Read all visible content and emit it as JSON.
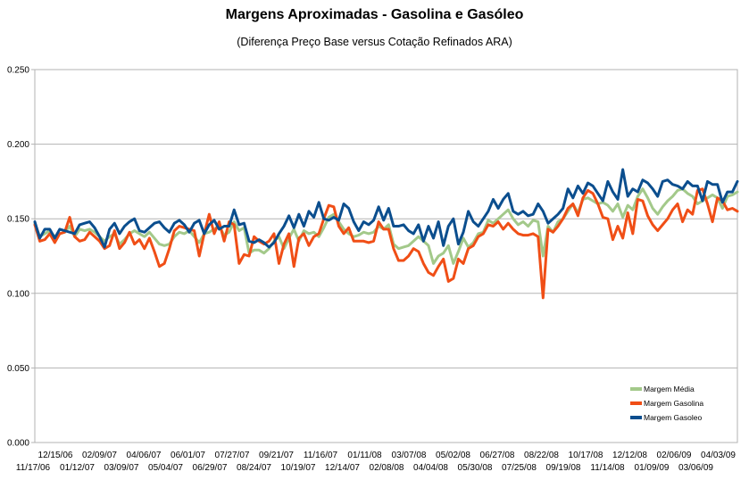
{
  "chart_data": {
    "type": "line",
    "title": "Margens Aproximadas - Gasolina e Gasóleo",
    "subtitle": "(Diferença Preço Base versus Cotação Refinados ARA)",
    "xlabel": "",
    "ylabel": "",
    "ylim": [
      0,
      0.25
    ],
    "y_ticks": [
      "0.000",
      "0.050",
      "0.100",
      "0.150",
      "0.200",
      "0.250"
    ],
    "grid": "horizontal major gridlines",
    "legend_position": "bottom-right",
    "x_tick_labels_upper": [
      "12/15/06",
      "02/09/07",
      "04/06/07",
      "06/01/07",
      "07/27/07",
      "09/21/07",
      "11/16/07",
      "01/11/08",
      "03/07/08",
      "05/02/08",
      "06/27/08",
      "08/22/08",
      "10/17/08",
      "12/12/08",
      "02/06/09",
      "04/03/09"
    ],
    "x_tick_labels_lower": [
      "11/17/06",
      "01/12/07",
      "03/09/07",
      "05/04/07",
      "06/29/07",
      "08/24/07",
      "10/19/07",
      "12/14/07",
      "02/08/08",
      "04/04/08",
      "05/30/08",
      "07/25/08",
      "09/19/08",
      "11/14/08",
      "01/09/09",
      "03/06/09"
    ],
    "series": [
      {
        "name": "Margem Média",
        "color": "#a3c98a",
        "values": [
          0.147,
          0.138,
          0.14,
          0.142,
          0.138,
          0.14,
          0.141,
          0.145,
          0.138,
          0.143,
          0.142,
          0.143,
          0.141,
          0.138,
          0.135,
          0.138,
          0.14,
          0.133,
          0.136,
          0.14,
          0.142,
          0.14,
          0.138,
          0.141,
          0.137,
          0.133,
          0.132,
          0.133,
          0.138,
          0.141,
          0.14,
          0.142,
          0.138,
          0.134,
          0.14,
          0.141,
          0.143,
          0.145,
          0.139,
          0.141,
          0.148,
          0.142,
          0.144,
          0.127,
          0.129,
          0.129,
          0.127,
          0.13,
          0.135,
          0.138,
          0.13,
          0.137,
          0.143,
          0.135,
          0.142,
          0.14,
          0.141,
          0.138,
          0.144,
          0.151,
          0.153,
          0.148,
          0.143,
          0.14,
          0.138,
          0.139,
          0.141,
          0.14,
          0.141,
          0.145,
          0.143,
          0.146,
          0.133,
          0.13,
          0.131,
          0.132,
          0.135,
          0.138,
          0.135,
          0.132,
          0.12,
          0.125,
          0.127,
          0.132,
          0.12,
          0.128,
          0.137,
          0.131,
          0.134,
          0.14,
          0.141,
          0.149,
          0.147,
          0.15,
          0.153,
          0.156,
          0.15,
          0.146,
          0.148,
          0.145,
          0.149,
          0.148,
          0.125,
          0.145,
          0.141,
          0.148,
          0.15,
          0.155,
          0.16,
          0.154,
          0.163,
          0.164,
          0.162,
          0.16,
          0.161,
          0.159,
          0.155,
          0.16,
          0.151,
          0.159,
          0.156,
          0.165,
          0.17,
          0.164,
          0.157,
          0.153,
          0.158,
          0.162,
          0.165,
          0.169,
          0.17,
          0.167,
          0.165,
          0.16,
          0.162,
          0.164,
          0.166,
          0.164,
          0.157,
          0.165,
          0.166,
          0.168
        ]
      },
      {
        "name": "Margem Gasolina",
        "color": "#f04e16",
        "values": [
          0.146,
          0.135,
          0.136,
          0.14,
          0.134,
          0.14,
          0.141,
          0.151,
          0.138,
          0.135,
          0.136,
          0.141,
          0.138,
          0.135,
          0.13,
          0.132,
          0.142,
          0.13,
          0.134,
          0.141,
          0.133,
          0.136,
          0.13,
          0.137,
          0.128,
          0.118,
          0.12,
          0.13,
          0.142,
          0.145,
          0.144,
          0.143,
          0.142,
          0.125,
          0.14,
          0.153,
          0.14,
          0.148,
          0.135,
          0.148,
          0.146,
          0.12,
          0.126,
          0.125,
          0.138,
          0.135,
          0.133,
          0.135,
          0.14,
          0.12,
          0.133,
          0.14,
          0.118,
          0.137,
          0.14,
          0.132,
          0.138,
          0.14,
          0.15,
          0.159,
          0.158,
          0.145,
          0.14,
          0.144,
          0.135,
          0.135,
          0.135,
          0.134,
          0.135,
          0.148,
          0.143,
          0.143,
          0.13,
          0.122,
          0.122,
          0.125,
          0.13,
          0.128,
          0.12,
          0.114,
          0.112,
          0.118,
          0.123,
          0.108,
          0.11,
          0.123,
          0.12,
          0.13,
          0.132,
          0.138,
          0.14,
          0.146,
          0.145,
          0.148,
          0.143,
          0.147,
          0.143,
          0.14,
          0.139,
          0.139,
          0.14,
          0.138,
          0.097,
          0.143,
          0.141,
          0.145,
          0.15,
          0.157,
          0.16,
          0.152,
          0.164,
          0.169,
          0.167,
          0.16,
          0.151,
          0.15,
          0.136,
          0.145,
          0.137,
          0.154,
          0.14,
          0.163,
          0.162,
          0.152,
          0.146,
          0.142,
          0.146,
          0.15,
          0.156,
          0.16,
          0.148,
          0.156,
          0.153,
          0.169,
          0.17,
          0.16,
          0.148,
          0.164,
          0.162,
          0.156,
          0.157,
          0.155
        ]
      },
      {
        "name": "Margem Gasoleo",
        "color": "#0b4e8e",
        "values": [
          0.148,
          0.137,
          0.143,
          0.143,
          0.137,
          0.143,
          0.142,
          0.141,
          0.14,
          0.146,
          0.147,
          0.148,
          0.144,
          0.138,
          0.131,
          0.143,
          0.147,
          0.14,
          0.145,
          0.148,
          0.15,
          0.142,
          0.141,
          0.144,
          0.147,
          0.148,
          0.144,
          0.141,
          0.147,
          0.149,
          0.146,
          0.141,
          0.147,
          0.149,
          0.14,
          0.146,
          0.149,
          0.143,
          0.145,
          0.145,
          0.156,
          0.146,
          0.147,
          0.135,
          0.134,
          0.136,
          0.134,
          0.131,
          0.134,
          0.14,
          0.145,
          0.152,
          0.144,
          0.153,
          0.145,
          0.155,
          0.151,
          0.161,
          0.15,
          0.149,
          0.151,
          0.149,
          0.16,
          0.157,
          0.148,
          0.142,
          0.148,
          0.146,
          0.149,
          0.158,
          0.149,
          0.157,
          0.145,
          0.145,
          0.146,
          0.142,
          0.14,
          0.146,
          0.135,
          0.145,
          0.137,
          0.148,
          0.132,
          0.145,
          0.15,
          0.133,
          0.141,
          0.155,
          0.148,
          0.145,
          0.15,
          0.155,
          0.163,
          0.157,
          0.163,
          0.167,
          0.155,
          0.153,
          0.155,
          0.152,
          0.153,
          0.16,
          0.155,
          0.147,
          0.15,
          0.153,
          0.157,
          0.17,
          0.164,
          0.172,
          0.167,
          0.174,
          0.172,
          0.167,
          0.162,
          0.175,
          0.168,
          0.163,
          0.183,
          0.165,
          0.17,
          0.168,
          0.176,
          0.174,
          0.17,
          0.165,
          0.175,
          0.176,
          0.173,
          0.172,
          0.17,
          0.175,
          0.172,
          0.172,
          0.162,
          0.175,
          0.173,
          0.173,
          0.161,
          0.168,
          0.168,
          0.175
        ]
      }
    ]
  }
}
